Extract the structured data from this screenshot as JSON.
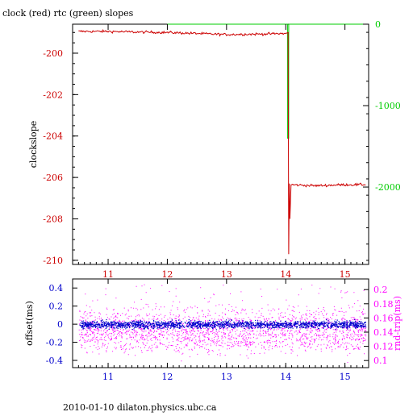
{
  "title": "clock (red) rtc (green) slopes",
  "footer": "2010-01-10  dilaton.physics.ubc.ca",
  "colors": {
    "clock": "#cc0000",
    "rtc": "#00cc00",
    "offset": "#0000cc",
    "roundtrip": "#ff00ff",
    "axis": "#000000"
  },
  "chart_data": [
    {
      "type": "line",
      "title": "clock (red) rtc (green) slopes",
      "ylabel": "clockslope",
      "xlim": [
        10.4,
        15.4
      ],
      "ylim": [
        -210.2,
        -198.6
      ],
      "y2lim": [
        -2950,
        0
      ],
      "x_ticks": [
        "11",
        "12",
        "13",
        "14",
        "15"
      ],
      "y_ticks": [
        "-200",
        "-202",
        "-204",
        "-206",
        "-208",
        "-210"
      ],
      "y2_ticks": [
        "0",
        "-1000",
        "-2000"
      ],
      "series": [
        {
          "name": "clock",
          "axis": "left",
          "x": [
            10.5,
            11.0,
            11.5,
            12.0,
            12.5,
            13.0,
            13.5,
            14.0,
            14.04,
            14.05,
            14.06,
            14.07,
            14.09,
            14.5,
            15.0,
            15.35
          ],
          "y": [
            -198.95,
            -198.95,
            -198.98,
            -199.0,
            -199.05,
            -199.1,
            -199.08,
            -199.05,
            -199.0,
            -209.7,
            -206.3,
            -208.0,
            -206.35,
            -206.4,
            -206.35,
            -206.35
          ]
        },
        {
          "name": "rtc",
          "axis": "right",
          "x": [
            12.0,
            14.03,
            14.03,
            14.05,
            14.05,
            15.35
          ],
          "y": [
            0,
            0,
            -1400,
            -1400,
            0,
            0
          ]
        }
      ]
    },
    {
      "type": "scatter",
      "ylabel": "offset(ms)",
      "y2label": "rnd-trip(ms)",
      "xlim": [
        10.4,
        15.4
      ],
      "ylim": [
        -0.48,
        0.5
      ],
      "y2lim": [
        0.09,
        0.215
      ],
      "x_ticks": [
        "11",
        "12",
        "13",
        "14",
        "15"
      ],
      "y_ticks": [
        "0.4",
        "0.2",
        "0",
        "-0.2",
        "-0.4"
      ],
      "y2_ticks": [
        "0.2",
        "0.18",
        "0.16",
        "0.14",
        "0.12",
        "0.1"
      ],
      "series": [
        {
          "name": "offset",
          "axis": "left",
          "x_range": [
            10.5,
            15.35
          ],
          "y_center": 0.0,
          "y_spread": 0.02
        },
        {
          "name": "rnd-trip",
          "axis": "right",
          "x_range": [
            10.5,
            15.35
          ],
          "y_center": 0.143,
          "y_spread": 0.015
        }
      ]
    }
  ]
}
